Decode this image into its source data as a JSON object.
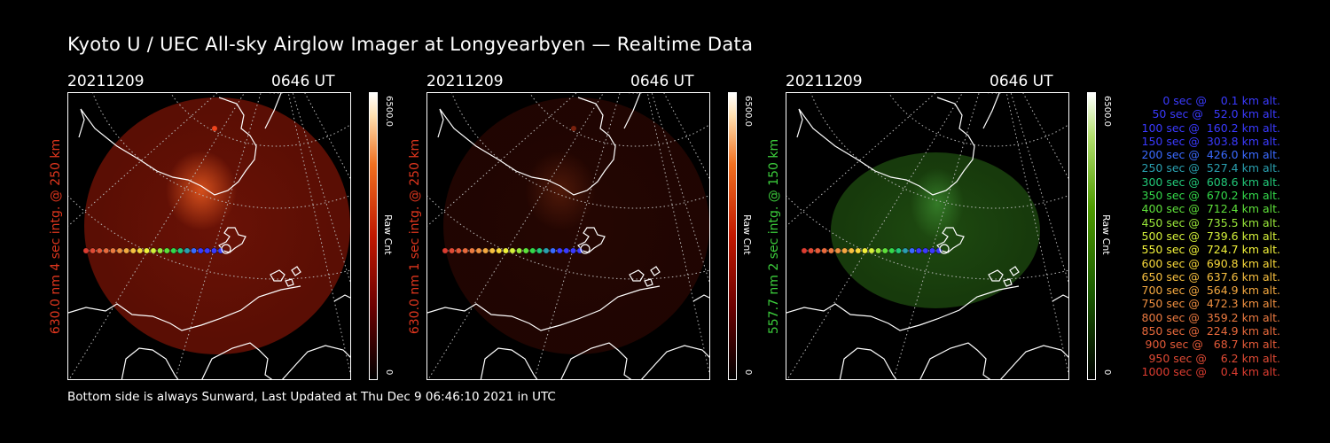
{
  "title": "Kyoto U / UEC All-sky Airglow Imager at Longyearbyen — Realtime Data",
  "footer": "Bottom side is always Sunward, Last Updated at Thu Dec  9 06:46:10 2021 in UTC",
  "panels": [
    {
      "date": "20211209",
      "time": "0646 UT",
      "ylabel": "630.0 nm 4 sec intg. @ 250 km",
      "label_color": "#e0361e",
      "cbar_max": "6500.0",
      "cbar_unit": "Raw Cnt",
      "cbar_min": "0",
      "colormap": "red",
      "glow_intensity": 0.85
    },
    {
      "date": "20211209",
      "time": "0646 UT",
      "ylabel": "630.0 nm 1 sec intg. @ 250 km",
      "label_color": "#e0361e",
      "cbar_max": "6500.0",
      "cbar_unit": "Raw Cnt",
      "cbar_min": "0",
      "colormap": "red",
      "glow_intensity": 0.22
    },
    {
      "date": "20211209",
      "time": "0646 UT",
      "ylabel": "557.7 nm 2 sec intg. @ 150 km",
      "label_color": "#3ccf3c",
      "cbar_max": "6500.0",
      "cbar_unit": "Raw Cnt",
      "cbar_min": "0",
      "colormap": "green",
      "glow_intensity": 0.5
    }
  ],
  "legend": [
    {
      "text": "   0 sec @    0.1 km alt.",
      "color": "#3a3aff"
    },
    {
      "text": "  50 sec @   52.0 km alt.",
      "color": "#3a3aff"
    },
    {
      "text": " 100 sec @  160.2 km alt.",
      "color": "#3a3aff"
    },
    {
      "text": " 150 sec @  303.8 km alt.",
      "color": "#3a3aff"
    },
    {
      "text": " 200 sec @  426.0 km alt.",
      "color": "#3a6aff"
    },
    {
      "text": " 250 sec @  527.4 km alt.",
      "color": "#2aa0b0"
    },
    {
      "text": " 300 sec @  608.6 km alt.",
      "color": "#22c878"
    },
    {
      "text": " 350 sec @  670.2 km alt.",
      "color": "#33d84a"
    },
    {
      "text": " 400 sec @  712.4 km alt.",
      "color": "#5ee03a"
    },
    {
      "text": " 450 sec @  735.5 km alt.",
      "color": "#9ae83a"
    },
    {
      "text": " 500 sec @  739.6 km alt.",
      "color": "#d4f03a"
    },
    {
      "text": " 550 sec @  724.7 km alt.",
      "color": "#f2f23a"
    },
    {
      "text": " 600 sec @  690.8 km alt.",
      "color": "#f8d83a"
    },
    {
      "text": " 650 sec @  637.6 km alt.",
      "color": "#f8c040"
    },
    {
      "text": " 700 sec @  564.9 km alt.",
      "color": "#f4a840"
    },
    {
      "text": " 750 sec @  472.3 km alt.",
      "color": "#f09040"
    },
    {
      "text": " 800 sec @  359.2 km alt.",
      "color": "#ec7a40"
    },
    {
      "text": " 850 sec @  224.9 km alt.",
      "color": "#e86a3c"
    },
    {
      "text": " 900 sec @   68.7 km alt.",
      "color": "#e45a38"
    },
    {
      "text": " 950 sec @    6.2 km alt.",
      "color": "#e04a34"
    },
    {
      "text": "1000 sec @    0.4 km alt.",
      "color": "#dc3c30"
    }
  ]
}
